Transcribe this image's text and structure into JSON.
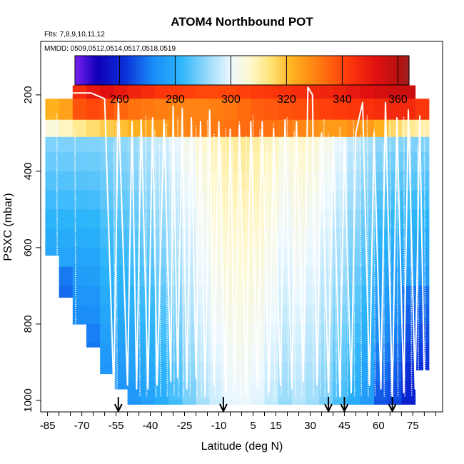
{
  "chart_data": {
    "type": "heatmap",
    "title": "ATOM4 Northbound POT",
    "flights_note": "Flts: 7,8,9,10,11,12",
    "dates_note": "MMDD: 0509,0512,0514,0517,0518,0519",
    "xlabel": "Latitude (deg N)",
    "ylabel": "PSXC (mbar)",
    "xlim": [
      -88,
      88
    ],
    "ylim": [
      1030,
      60
    ],
    "x_ticks": [
      -85,
      -70,
      -55,
      -40,
      -25,
      -10,
      5,
      15,
      30,
      45,
      60,
      75
    ],
    "x_tick_labels": [
      "-85",
      "-70",
      "-55",
      "-40",
      "-25",
      "-10",
      "5",
      "15",
      "30",
      "45",
      "60",
      "75"
    ],
    "y_ticks": [
      200,
      400,
      600,
      800,
      1000
    ],
    "y_tick_labels": [
      "200",
      "400",
      "600",
      "800",
      "1000"
    ],
    "colorbar": {
      "range": [
        244,
        364
      ],
      "ticks": [
        260,
        280,
        300,
        320,
        340,
        360
      ],
      "tick_labels": [
        "260",
        "280",
        "300",
        "320",
        "340",
        "360"
      ]
    },
    "color_stops": [
      {
        "v": 244,
        "c": "#7a1ff0"
      },
      {
        "v": 252,
        "c": "#1000b8"
      },
      {
        "v": 262,
        "c": "#0a2fd8"
      },
      {
        "v": 272,
        "c": "#1a8cf8"
      },
      {
        "v": 282,
        "c": "#2cb5fb"
      },
      {
        "v": 292,
        "c": "#9cdcfb"
      },
      {
        "v": 300,
        "c": "#ecf8ff"
      },
      {
        "v": 307,
        "c": "#fff8cc"
      },
      {
        "v": 314,
        "c": "#ffe47a"
      },
      {
        "v": 322,
        "c": "#ffb21e"
      },
      {
        "v": 332,
        "c": "#ff7810"
      },
      {
        "v": 342,
        "c": "#ff3a0a"
      },
      {
        "v": 352,
        "c": "#e01010"
      },
      {
        "v": 360,
        "c": "#b81010"
      },
      {
        "v": 364,
        "c": "#a02020"
      }
    ],
    "lat_bins": [
      -86,
      -80,
      -74,
      -68,
      -62,
      -56,
      -50,
      -44,
      -38,
      -32,
      -26,
      -20,
      -14,
      -8,
      -2,
      4,
      10,
      16,
      22,
      28,
      34,
      40,
      46,
      52,
      58,
      64,
      70,
      76,
      82
    ],
    "pressure_bins": [
      175,
      210,
      265,
      310,
      350,
      400,
      450,
      500,
      550,
      600,
      650,
      700,
      750,
      800,
      850,
      900,
      950,
      1000
    ],
    "column_bottoms": [
      620,
      730,
      800,
      860,
      930,
      970,
      1010,
      1010,
      1010,
      1010,
      1010,
      1010,
      1010,
      1010,
      1010,
      1010,
      1010,
      1010,
      1010,
      1010,
      1010,
      1010,
      1010,
      1010,
      1010,
      1010,
      1010,
      920
    ],
    "column_tops": [
      210,
      210,
      175,
      175,
      175,
      175,
      175,
      175,
      175,
      175,
      175,
      175,
      175,
      175,
      175,
      175,
      175,
      175,
      175,
      175,
      175,
      175,
      175,
      175,
      175,
      175,
      175,
      210
    ],
    "upper_layers": {
      "p175": [
        328,
        330,
        345,
        350,
        352,
        350,
        347,
        345,
        343,
        342,
        341,
        340,
        340,
        340,
        341,
        342,
        343,
        344,
        345,
        346,
        347,
        348,
        350,
        352,
        354,
        356,
        356,
        352
      ],
      "p210": [
        322,
        325,
        338,
        340,
        338,
        335,
        333,
        332,
        331,
        330,
        330,
        330,
        331,
        332,
        334,
        336,
        337,
        338,
        339,
        340,
        341,
        342,
        343,
        344,
        345,
        346,
        346,
        343
      ],
      "p265": [
        305,
        308,
        312,
        315,
        318,
        320,
        322,
        324,
        326,
        328,
        330,
        331,
        332,
        333,
        334,
        334,
        333,
        332,
        330,
        328,
        326,
        326,
        328,
        326,
        322,
        316,
        312,
        310
      ]
    },
    "profile_columns": [
      -81,
      -73,
      -56,
      -55,
      -45,
      -42,
      -38,
      -36,
      -33,
      -30,
      -28,
      -26,
      -23,
      -20,
      -18,
      -15,
      -12,
      -9,
      -7,
      -4,
      -1,
      2,
      5,
      8,
      11,
      14,
      17,
      20,
      23,
      26,
      31,
      34,
      36,
      38,
      41,
      43,
      46,
      49,
      52,
      55,
      58,
      62,
      65,
      68,
      71,
      74,
      77,
      80
    ],
    "track": [
      [
        -80,
        205
      ],
      [
        -76,
        195
      ],
      [
        -66,
        195
      ],
      [
        -60,
        210
      ],
      [
        -56,
        980
      ],
      [
        -54,
        210
      ],
      [
        -50,
        960
      ],
      [
        -48,
        270
      ],
      [
        -46,
        970
      ],
      [
        -44,
        265
      ],
      [
        -41,
        970
      ],
      [
        -39,
        260
      ],
      [
        -37,
        960
      ],
      [
        -34,
        265
      ],
      [
        -31,
        950
      ],
      [
        -30,
        230
      ],
      [
        -28,
        940
      ],
      [
        -26,
        235
      ],
      [
        -24,
        970
      ],
      [
        -22,
        260
      ],
      [
        -20,
        940
      ],
      [
        -18,
        270
      ],
      [
        -16,
        990
      ],
      [
        -14,
        240
      ],
      [
        -12,
        960
      ],
      [
        -10,
        270
      ],
      [
        -7,
        980
      ],
      [
        -5,
        290
      ],
      [
        -3,
        960
      ],
      [
        -1,
        280
      ],
      [
        2,
        980
      ],
      [
        4,
        270
      ],
      [
        7,
        970
      ],
      [
        9,
        270
      ],
      [
        12,
        980
      ],
      [
        14,
        290
      ],
      [
        17,
        960
      ],
      [
        19,
        265
      ],
      [
        22,
        970
      ],
      [
        24,
        270
      ],
      [
        27,
        950
      ],
      [
        29,
        180
      ],
      [
        31,
        200
      ],
      [
        33,
        960
      ],
      [
        35,
        300
      ],
      [
        38,
        980
      ],
      [
        40,
        310
      ],
      [
        43,
        990
      ],
      [
        45,
        320
      ],
      [
        48,
        980
      ],
      [
        50,
        300
      ],
      [
        53,
        220
      ],
      [
        56,
        960
      ],
      [
        58,
        300
      ],
      [
        61,
        970
      ],
      [
        63,
        220
      ],
      [
        66,
        990
      ],
      [
        68,
        260
      ],
      [
        71,
        980
      ],
      [
        73,
        240
      ],
      [
        76,
        970
      ],
      [
        78,
        255
      ],
      [
        80,
        950
      ]
    ],
    "takeoff_arrows": [
      -54,
      -8,
      38,
      45,
      66
    ]
  }
}
